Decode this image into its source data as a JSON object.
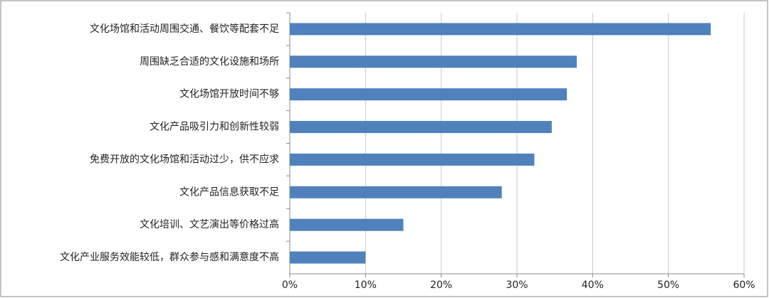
{
  "chart_data": {
    "type": "bar",
    "orientation": "horizontal",
    "categories": [
      "文化场馆和活动周围交通、餐饮等配套不足",
      "周围缺乏合适的文化设施和场所",
      "文化场馆开放时间不够",
      "文化产品吸引力和创新性较弱",
      "免费开放的文化场馆和活动过少，供不应求",
      "文化产品信息获取不足",
      "文化培训、文艺演出等价格过高",
      "文化产业服务效能较低，群众参与感和满意度不高"
    ],
    "values": [
      55.6,
      37.9,
      36.6,
      34.6,
      32.3,
      28.0,
      15.0,
      10.0
    ],
    "color": "#4f81bd",
    "xlim": [
      0,
      60
    ],
    "xticks": [
      {
        "value": 0,
        "label": "0%"
      },
      {
        "value": 10,
        "label": "10%"
      },
      {
        "value": 20,
        "label": "20%"
      },
      {
        "value": 30,
        "label": "30%"
      },
      {
        "value": 40,
        "label": "40%"
      },
      {
        "value": 50,
        "label": "50%"
      },
      {
        "value": 60,
        "label": "60%"
      }
    ],
    "grid": true
  }
}
